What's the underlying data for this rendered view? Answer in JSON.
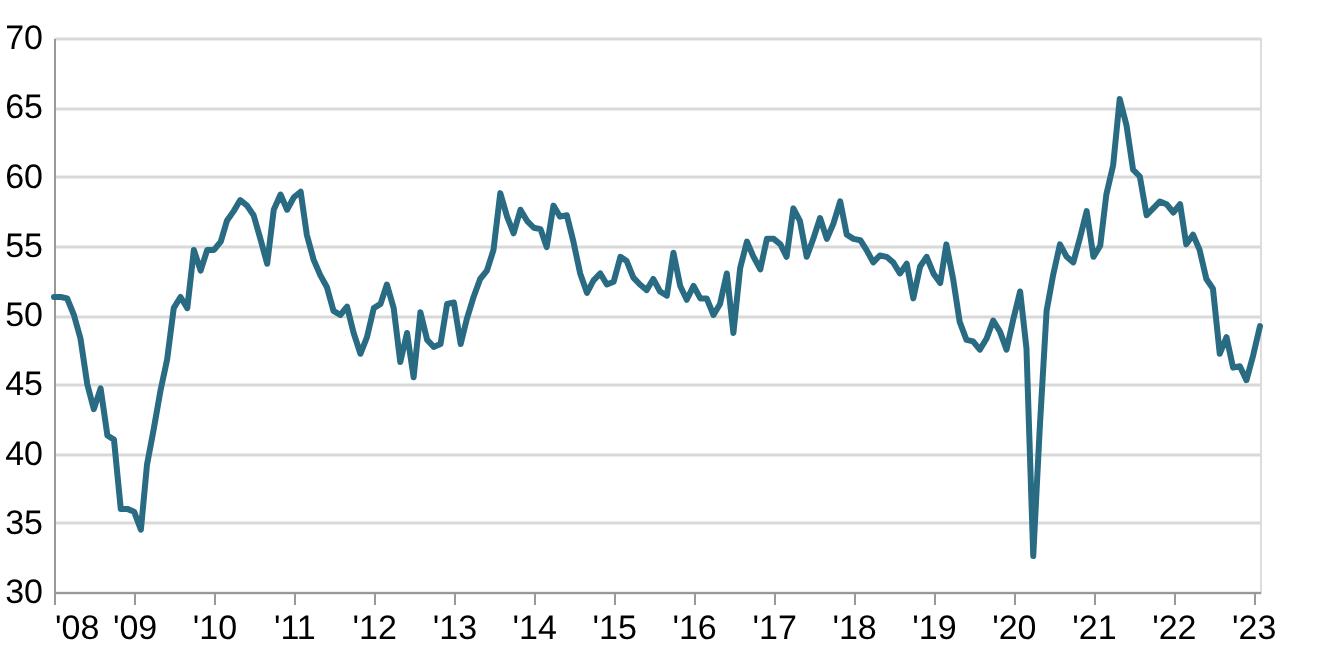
{
  "chart_data": {
    "type": "line",
    "grid": "y",
    "line_style": "solid",
    "marker": "none",
    "xlim": [
      "2008-01",
      "2023-02"
    ],
    "xticks": [
      {
        "value": "2008",
        "label": "'08"
      },
      {
        "value": "2009",
        "label": "'09"
      },
      {
        "value": "2010",
        "label": "'10"
      },
      {
        "value": "2011",
        "label": "'11"
      },
      {
        "value": "2012",
        "label": "'12"
      },
      {
        "value": "2013",
        "label": "'13"
      },
      {
        "value": "2014",
        "label": "'14"
      },
      {
        "value": "2015",
        "label": "'15"
      },
      {
        "value": "2016",
        "label": "'16"
      },
      {
        "value": "2017",
        "label": "'17"
      },
      {
        "value": "2018",
        "label": "'18"
      },
      {
        "value": "2019",
        "label": "'19"
      },
      {
        "value": "2020",
        "label": "'20"
      },
      {
        "value": "2021",
        "label": "'21"
      },
      {
        "value": "2022",
        "label": "'22"
      },
      {
        "value": "2023",
        "label": "'23"
      }
    ],
    "ylim": [
      30,
      70
    ],
    "yticks": [
      30,
      35,
      40,
      45,
      50,
      55,
      60,
      65,
      70
    ],
    "x": [
      "2008-01",
      "2008-02",
      "2008-03",
      "2008-04",
      "2008-05",
      "2008-06",
      "2008-07",
      "2008-08",
      "2008-09",
      "2008-10",
      "2008-11",
      "2008-12",
      "2009-01",
      "2009-02",
      "2009-03",
      "2009-04",
      "2009-05",
      "2009-06",
      "2009-07",
      "2009-08",
      "2009-09",
      "2009-10",
      "2009-11",
      "2009-12",
      "2010-01",
      "2010-02",
      "2010-03",
      "2010-04",
      "2010-05",
      "2010-06",
      "2010-07",
      "2010-08",
      "2010-09",
      "2010-10",
      "2010-11",
      "2010-12",
      "2011-01",
      "2011-02",
      "2011-03",
      "2011-04",
      "2011-05",
      "2011-06",
      "2011-07",
      "2011-08",
      "2011-09",
      "2011-10",
      "2011-11",
      "2011-12",
      "2012-01",
      "2012-02",
      "2012-03",
      "2012-04",
      "2012-05",
      "2012-06",
      "2012-07",
      "2012-08",
      "2012-09",
      "2012-10",
      "2012-11",
      "2012-12",
      "2013-01",
      "2013-02",
      "2013-03",
      "2013-04",
      "2013-05",
      "2013-06",
      "2013-07",
      "2013-08",
      "2013-09",
      "2013-10",
      "2013-11",
      "2013-12",
      "2014-01",
      "2014-02",
      "2014-03",
      "2014-04",
      "2014-05",
      "2014-06",
      "2014-07",
      "2014-08",
      "2014-09",
      "2014-10",
      "2014-11",
      "2014-12",
      "2015-01",
      "2015-02",
      "2015-03",
      "2015-04",
      "2015-05",
      "2015-06",
      "2015-07",
      "2015-08",
      "2015-09",
      "2015-10",
      "2015-11",
      "2015-12",
      "2016-01",
      "2016-02",
      "2016-03",
      "2016-04",
      "2016-05",
      "2016-06",
      "2016-07",
      "2016-08",
      "2016-09",
      "2016-10",
      "2016-11",
      "2016-12",
      "2017-01",
      "2017-02",
      "2017-03",
      "2017-04",
      "2017-05",
      "2017-06",
      "2017-07",
      "2017-08",
      "2017-09",
      "2017-10",
      "2017-11",
      "2017-12",
      "2018-01",
      "2018-02",
      "2018-03",
      "2018-04",
      "2018-05",
      "2018-06",
      "2018-07",
      "2018-08",
      "2018-09",
      "2018-10",
      "2018-11",
      "2018-12",
      "2019-01",
      "2019-02",
      "2019-03",
      "2019-04",
      "2019-05",
      "2019-06",
      "2019-07",
      "2019-08",
      "2019-09",
      "2019-10",
      "2019-11",
      "2019-12",
      "2020-01",
      "2020-02",
      "2020-03",
      "2020-04",
      "2020-05",
      "2020-06",
      "2020-07",
      "2020-08",
      "2020-09",
      "2020-10",
      "2020-11",
      "2020-12",
      "2021-01",
      "2021-02",
      "2021-03",
      "2021-04",
      "2021-05",
      "2021-06",
      "2021-07",
      "2021-08",
      "2021-09",
      "2021-10",
      "2021-11",
      "2021-12",
      "2022-01",
      "2022-02",
      "2022-03",
      "2022-04",
      "2022-05",
      "2022-06",
      "2022-07",
      "2022-08",
      "2022-09",
      "2022-10",
      "2022-11",
      "2022-12",
      "2023-01",
      "2023-02"
    ],
    "series": [
      {
        "color": "#2a6b84",
        "values": [
          51.3,
          51.3,
          51.2,
          50,
          48.3,
          45,
          43.2,
          44.7,
          41.3,
          41,
          36,
          36,
          35.8,
          34.5,
          39.2,
          41.8,
          44.5,
          46.8,
          50.5,
          51.3,
          50.5,
          54.7,
          53.2,
          54.7,
          54.7,
          55.3,
          56.8,
          57.5,
          58.3,
          57.9,
          57.2,
          55.5,
          53.7,
          57.6,
          58.7,
          57.6,
          58.5,
          58.9,
          55.8,
          54,
          52.9,
          52,
          50.3,
          50,
          50.6,
          48.7,
          47.2,
          48.4,
          50.5,
          50.8,
          52.2,
          50.5,
          46.6,
          48.7,
          45.5,
          50.2,
          48.2,
          47.7,
          47.9,
          50.8,
          50.9,
          47.9,
          49.7,
          51.3,
          52.6,
          53.2,
          54.7,
          58.8,
          57.1,
          55.9,
          57.6,
          56.8,
          56.3,
          56.2,
          54.9,
          57.9,
          57.1,
          57.2,
          55.3,
          53,
          51.6,
          52.5,
          53,
          52.2,
          52.4,
          54.2,
          53.9,
          52.7,
          52.2,
          51.8,
          52.6,
          51.7,
          51.4,
          54.5,
          52.1,
          51.1,
          52.1,
          51.2,
          51.2,
          50,
          50.8,
          53,
          48.7,
          53.4,
          55.3,
          54.2,
          53.3,
          55.5,
          55.5,
          55.1,
          54.2,
          57.7,
          56.8,
          54.2,
          55.5,
          57,
          55.5,
          56.6,
          58.2,
          55.8,
          55.5,
          55.4,
          54.7,
          53.8,
          54.3,
          54.2,
          53.8,
          53,
          53.7,
          51.2,
          53.5,
          54.2,
          53,
          52.3,
          55.1,
          52.6,
          49.5,
          48.2,
          48.1,
          47.5,
          48.3,
          49.6,
          48.8,
          47.5,
          49.7,
          51.7,
          47.6,
          32.6,
          41.9,
          50.3,
          52.9,
          55.1,
          54.2,
          53.8,
          55.6,
          57.5,
          54.2,
          55,
          58.7,
          60.8,
          65.6,
          63.7,
          60.5,
          60,
          57.2,
          57.7,
          58.2,
          58,
          57.4,
          58,
          55.1,
          55.8,
          54.7,
          52.6,
          51.9,
          47.2,
          48.4,
          46.2,
          46.3,
          45.3,
          47.1,
          49.2
        ]
      }
    ]
  }
}
